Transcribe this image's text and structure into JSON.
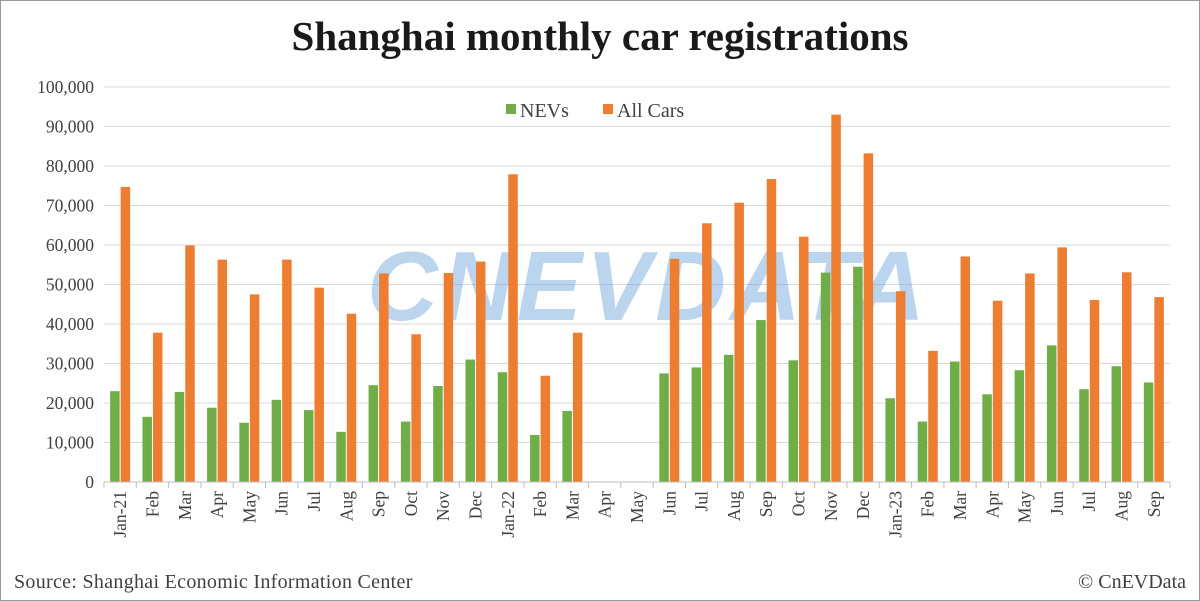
{
  "chart_data": {
    "type": "bar",
    "title": "Shanghai monthly car registrations",
    "categories": [
      "Jan-21",
      "Feb",
      "Mar",
      "Apr",
      "May",
      "Jun",
      "Jul",
      "Aug",
      "Sep",
      "Oct",
      "Nov",
      "Dec",
      "Jan-22",
      "Feb",
      "Mar",
      "Apr",
      "May",
      "Jun",
      "Jul",
      "Aug",
      "Sep",
      "Oct",
      "Nov",
      "Dec",
      "Jan-23",
      "Feb",
      "Mar",
      "Apr",
      "May",
      "Jun",
      "Jul",
      "Aug",
      "Sep"
    ],
    "series": [
      {
        "name": "NEVs",
        "color": "#70ad47",
        "values": [
          23000,
          16500,
          22800,
          18800,
          15000,
          20800,
          18200,
          12700,
          24500,
          15300,
          24300,
          31000,
          27800,
          11900,
          18000,
          null,
          null,
          27500,
          29000,
          32200,
          41000,
          30800,
          53000,
          54500,
          21200,
          15300,
          30500,
          22200,
          28300,
          34600,
          23500,
          29300,
          25200
        ]
      },
      {
        "name": "All Cars",
        "color": "#ed7d31",
        "values": [
          74700,
          37800,
          59900,
          56300,
          47500,
          56300,
          49200,
          42600,
          52800,
          37400,
          52900,
          55800,
          77900,
          26900,
          37800,
          null,
          null,
          56500,
          65500,
          70700,
          76700,
          62100,
          93000,
          83200,
          48300,
          33200,
          57100,
          45900,
          52800,
          59400,
          46100,
          53100,
          46800
        ]
      }
    ],
    "ylim": [
      0,
      100000
    ],
    "yticks": [
      0,
      10000,
      20000,
      30000,
      40000,
      50000,
      60000,
      70000,
      80000,
      90000,
      100000
    ],
    "ytick_labels": [
      "0",
      "10,000",
      "20,000",
      "30,000",
      "40,000",
      "50,000",
      "60,000",
      "70,000",
      "80,000",
      "90,000",
      "100,000"
    ],
    "grid": true,
    "legend": "top-center"
  },
  "watermark": "CNEVDATA",
  "footer": {
    "source": "Source: Shanghai Economic Information Center",
    "copyright": "© CnEVData"
  }
}
